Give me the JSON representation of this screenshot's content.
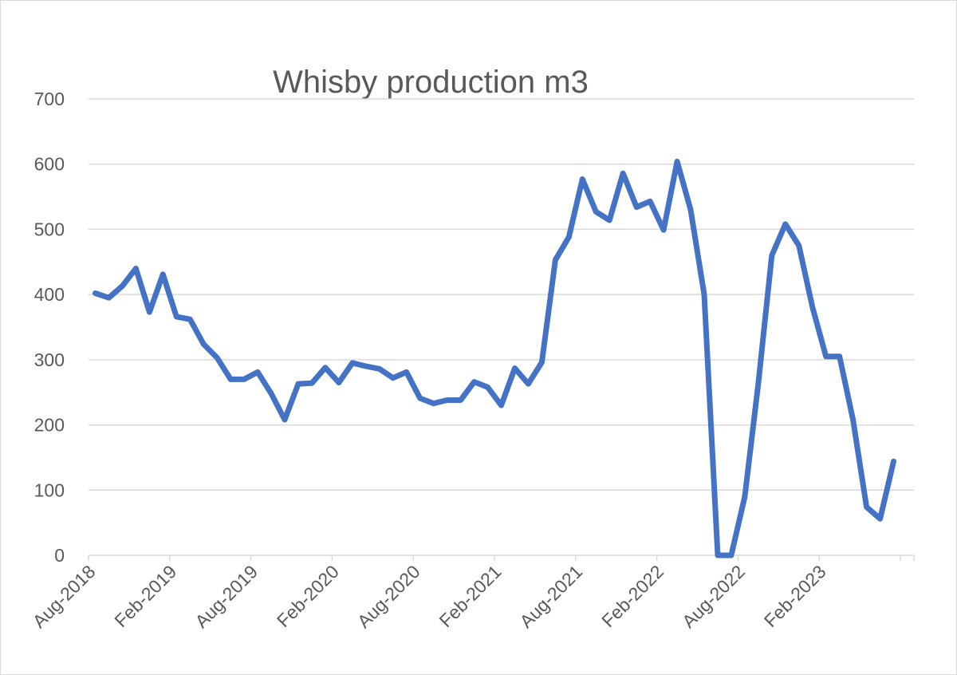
{
  "chart_data": {
    "type": "line",
    "title": "Whisby production m3",
    "xlabel": "",
    "ylabel": "",
    "ylim": [
      0,
      700
    ],
    "yticks": [
      "0",
      "100",
      "200",
      "300",
      "400",
      "500",
      "600",
      "700"
    ],
    "xticks": [
      "Aug-2018",
      "Feb-2019",
      "Aug-2019",
      "Feb-2020",
      "Aug-2020",
      "Feb-2021",
      "Aug-2021",
      "Feb-2022",
      "Aug-2022",
      "Feb-2023"
    ],
    "grid": true,
    "legend": "none",
    "series": [
      {
        "color": "#4472c4",
        "x": [
          "Aug-2018",
          "Sep-2018",
          "Oct-2018",
          "Nov-2018",
          "Dec-2018",
          "Jan-2019",
          "Feb-2019",
          "Mar-2019",
          "Apr-2019",
          "May-2019",
          "Jun-2019",
          "Jul-2019",
          "Aug-2019",
          "Sep-2019",
          "Oct-2019",
          "Nov-2019",
          "Dec-2019",
          "Jan-2020",
          "Feb-2020",
          "Mar-2020",
          "Apr-2020",
          "May-2020",
          "Jun-2020",
          "Jul-2020",
          "Aug-2020",
          "Sep-2020",
          "Oct-2020",
          "Nov-2020",
          "Dec-2020",
          "Jan-2021",
          "Feb-2021",
          "Mar-2021",
          "Apr-2021",
          "May-2021",
          "Jun-2021",
          "Jul-2021",
          "Aug-2021",
          "Sep-2021",
          "Oct-2021",
          "Nov-2021",
          "Dec-2021",
          "Jan-2022",
          "Feb-2022",
          "Mar-2022",
          "Apr-2022",
          "May-2022",
          "Jun-2022",
          "Jul-2022",
          "Aug-2022",
          "Sep-2022",
          "Oct-2022",
          "Nov-2022",
          "Dec-2022",
          "Jan-2023",
          "Feb-2023",
          "Mar-2023",
          "Apr-2023",
          "May-2023",
          "Jun-2023",
          "Jul-2023",
          "Aug-2023"
        ],
        "values": [
          402,
          395,
          413,
          440,
          373,
          431,
          366,
          362,
          324,
          303,
          270,
          270,
          281,
          248,
          208,
          263,
          264,
          288,
          265,
          295,
          290,
          286,
          272,
          281,
          241,
          233,
          238,
          238,
          266,
          258,
          230,
          287,
          263,
          296,
          453,
          488,
          577,
          527,
          514,
          586,
          534,
          543,
          499,
          604,
          530,
          400,
          0,
          0,
          90,
          264,
          460,
          508,
          475,
          381,
          305,
          305,
          208,
          74,
          56,
          144,
          null
        ]
      }
    ]
  }
}
